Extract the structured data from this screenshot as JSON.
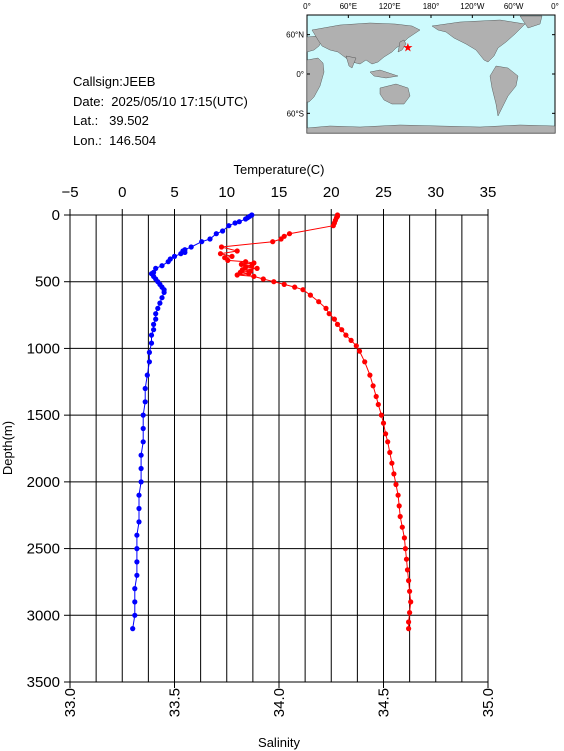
{
  "header": {
    "callsign": "Callsign:JEEB",
    "date": "Date:  2025/05/10 17:15(UTC)",
    "lat": "Lat.:   39.502",
    "lon": "Lon.:  146.504"
  },
  "map": {
    "top_ticks": [
      "0°",
      "60°E",
      "120°E",
      "180°",
      "120°W",
      "60°W",
      "0°"
    ],
    "left_ticks": [
      "60°N",
      "0°",
      "60°S"
    ],
    "ocean_color": "#cdfafd",
    "land_color": "#b0b0b0",
    "marker": {
      "lat": 39.502,
      "lon": 146.504,
      "color": "#ff0000",
      "icon": "star-icon"
    }
  },
  "chart_data": {
    "type": "scatter",
    "title": "",
    "xlabel_top": "Temperature(C)",
    "xlabel_bottom": "Salinity",
    "ylabel": "Depth(m)",
    "temperature_ticks": [
      "−5",
      "0",
      "5",
      "10",
      "15",
      "20",
      "25",
      "30",
      "35"
    ],
    "salinity_ticks": [
      "33.0",
      "33.5",
      "34.0",
      "34.5",
      "35.0"
    ],
    "depth_ticks": [
      "0",
      "500",
      "1000",
      "1500",
      "2000",
      "2500",
      "3000",
      "3500"
    ],
    "temperature_range": [
      -5,
      35
    ],
    "salinity_range": [
      33.0,
      35.0
    ],
    "depth_range": [
      0,
      3500
    ],
    "y_inverted": true,
    "grid": true,
    "series": [
      {
        "variable": "temperature",
        "color": "#ff0000",
        "points": [
          [
            20.6,
            0
          ],
          [
            20.6,
            10
          ],
          [
            20.5,
            20
          ],
          [
            20.4,
            40
          ],
          [
            20.3,
            60
          ],
          [
            20.2,
            80
          ],
          [
            16.0,
            140
          ],
          [
            15.5,
            160
          ],
          [
            15.2,
            180
          ],
          [
            14.4,
            200
          ],
          [
            9.5,
            240
          ],
          [
            11.0,
            270
          ],
          [
            9.4,
            290
          ],
          [
            10.5,
            310
          ],
          [
            9.8,
            320
          ],
          [
            10.1,
            340
          ],
          [
            11.8,
            350
          ],
          [
            12.6,
            360
          ],
          [
            11.4,
            370
          ],
          [
            12.4,
            380
          ],
          [
            11.8,
            390
          ],
          [
            12.9,
            400
          ],
          [
            11.5,
            410
          ],
          [
            12.3,
            420
          ],
          [
            11.3,
            430
          ],
          [
            12.1,
            440
          ],
          [
            11.0,
            450
          ],
          [
            12.6,
            460
          ],
          [
            13.5,
            480
          ],
          [
            14.5,
            500
          ],
          [
            15.5,
            520
          ],
          [
            16.5,
            540
          ],
          [
            17.3,
            560
          ],
          [
            18.0,
            600
          ],
          [
            18.8,
            650
          ],
          [
            19.5,
            700
          ],
          [
            19.8,
            740
          ],
          [
            20.3,
            780
          ],
          [
            20.6,
            820
          ],
          [
            21.0,
            860
          ],
          [
            21.4,
            900
          ],
          [
            21.9,
            940
          ],
          [
            22.4,
            980
          ],
          [
            22.7,
            1020
          ],
          [
            23.2,
            1100
          ],
          [
            23.7,
            1200
          ],
          [
            24.0,
            1280
          ],
          [
            24.3,
            1360
          ],
          [
            24.5,
            1420
          ],
          [
            24.8,
            1500
          ],
          [
            25.0,
            1560
          ],
          [
            25.2,
            1640
          ],
          [
            25.4,
            1700
          ],
          [
            25.6,
            1780
          ],
          [
            25.8,
            1860
          ],
          [
            26.0,
            1940
          ],
          [
            26.2,
            2020
          ],
          [
            26.4,
            2100
          ],
          [
            26.5,
            2180
          ],
          [
            26.6,
            2260
          ],
          [
            26.8,
            2340
          ],
          [
            27.0,
            2420
          ],
          [
            27.1,
            2500
          ],
          [
            27.2,
            2580
          ],
          [
            27.3,
            2660
          ],
          [
            27.4,
            2740
          ],
          [
            27.5,
            2820
          ],
          [
            27.6,
            2900
          ],
          [
            27.5,
            2980
          ],
          [
            27.4,
            3050
          ],
          [
            27.4,
            3100
          ]
        ]
      },
      {
        "variable": "salinity",
        "color": "#0000ff",
        "points": [
          [
            33.87,
            0
          ],
          [
            33.86,
            10
          ],
          [
            33.85,
            20
          ],
          [
            33.84,
            30
          ],
          [
            33.81,
            50
          ],
          [
            33.79,
            60
          ],
          [
            33.76,
            80
          ],
          [
            33.73,
            120
          ],
          [
            33.7,
            140
          ],
          [
            33.67,
            180
          ],
          [
            33.63,
            200
          ],
          [
            33.58,
            240
          ],
          [
            33.55,
            260
          ],
          [
            33.54,
            270
          ],
          [
            33.55,
            280
          ],
          [
            33.53,
            290
          ],
          [
            33.5,
            310
          ],
          [
            33.48,
            330
          ],
          [
            33.47,
            350
          ],
          [
            33.44,
            380
          ],
          [
            33.41,
            400
          ],
          [
            33.4,
            430
          ],
          [
            33.39,
            440
          ],
          [
            33.4,
            460
          ],
          [
            33.41,
            480
          ],
          [
            33.42,
            500
          ],
          [
            33.43,
            520
          ],
          [
            33.44,
            540
          ],
          [
            33.45,
            560
          ],
          [
            33.45,
            580
          ],
          [
            33.44,
            620
          ],
          [
            33.43,
            660
          ],
          [
            33.42,
            700
          ],
          [
            33.41,
            740
          ],
          [
            33.41,
            780
          ],
          [
            33.4,
            820
          ],
          [
            33.4,
            860
          ],
          [
            33.39,
            900
          ],
          [
            33.39,
            960
          ],
          [
            33.38,
            1030
          ],
          [
            33.38,
            1100
          ],
          [
            33.37,
            1200
          ],
          [
            33.36,
            1300
          ],
          [
            33.36,
            1400
          ],
          [
            33.35,
            1500
          ],
          [
            33.35,
            1600
          ],
          [
            33.35,
            1700
          ],
          [
            33.34,
            1800
          ],
          [
            33.34,
            1900
          ],
          [
            33.34,
            2000
          ],
          [
            33.33,
            2100
          ],
          [
            33.33,
            2200
          ],
          [
            33.33,
            2300
          ],
          [
            33.32,
            2400
          ],
          [
            33.32,
            2500
          ],
          [
            33.32,
            2600
          ],
          [
            33.32,
            2700
          ],
          [
            33.31,
            2800
          ],
          [
            33.31,
            2900
          ],
          [
            33.31,
            3000
          ],
          [
            33.3,
            3100
          ]
        ]
      }
    ]
  }
}
